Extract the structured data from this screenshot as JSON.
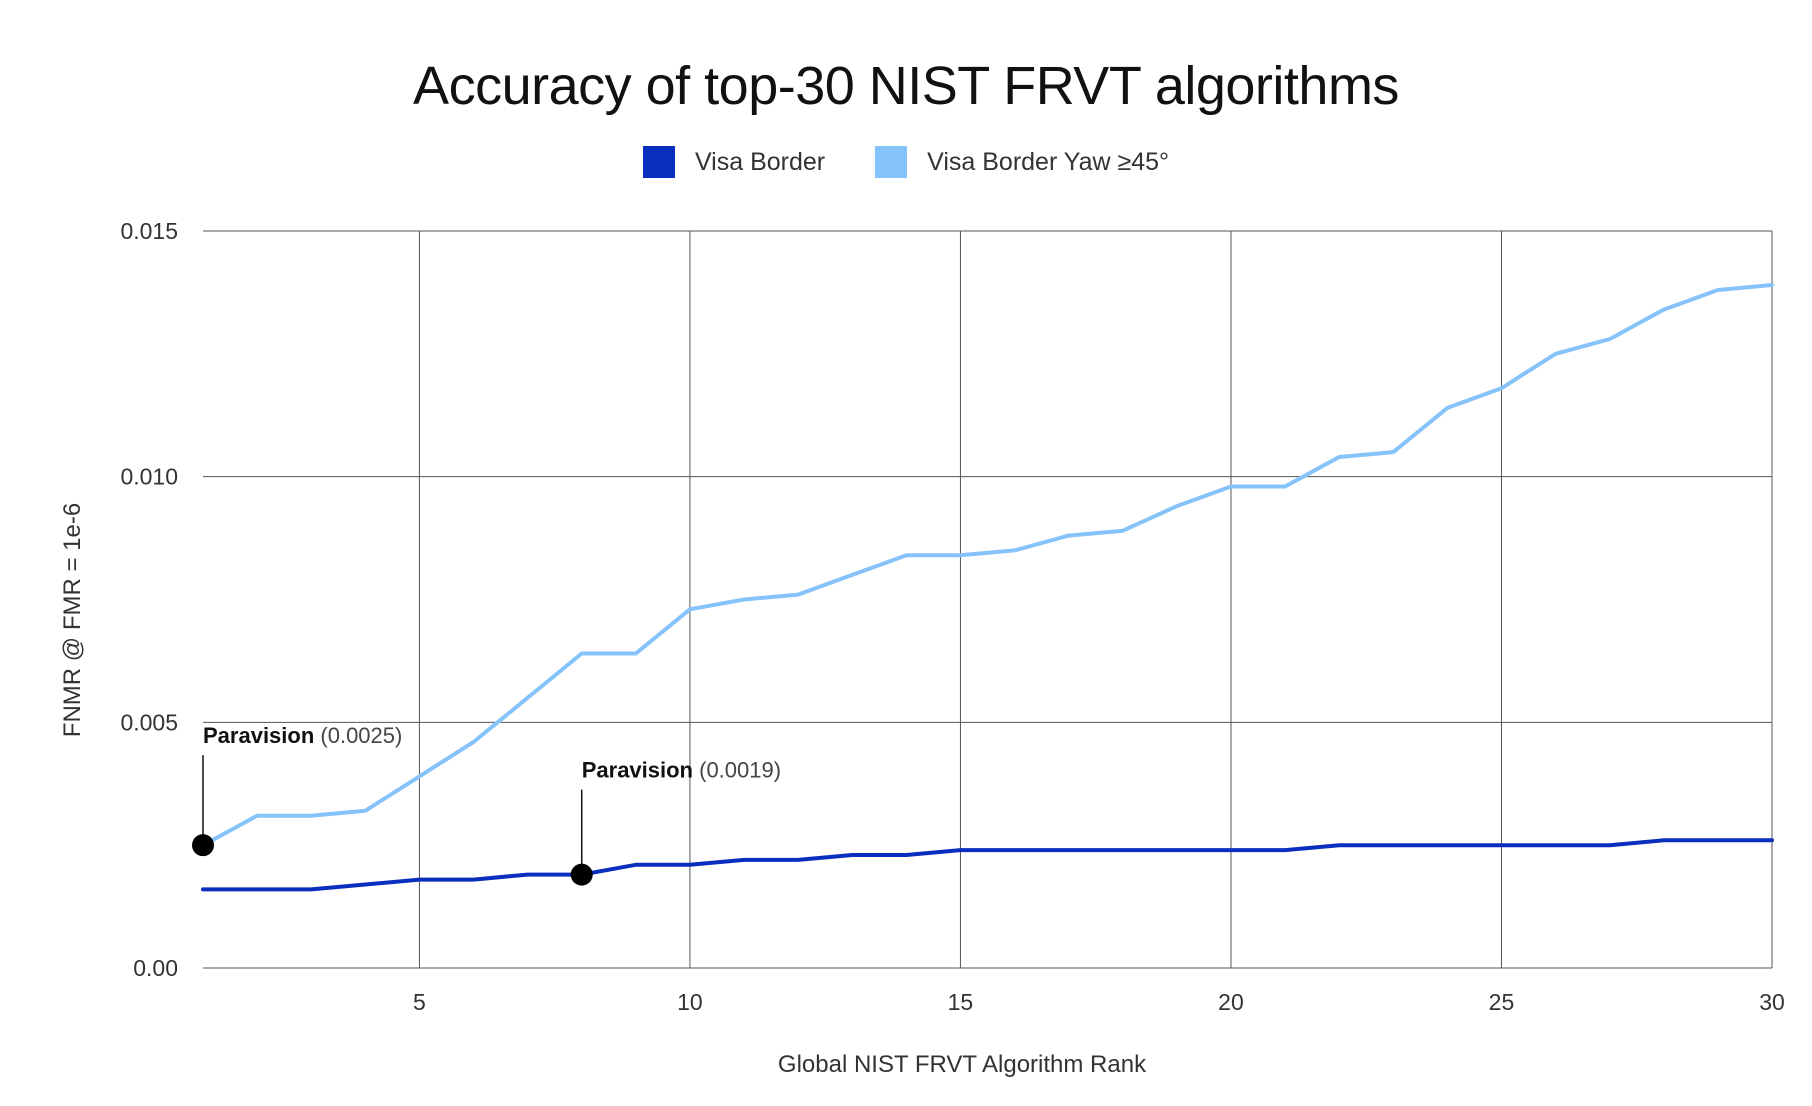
{
  "chart_data": {
    "type": "line",
    "title": "Accuracy of top-30 NIST FRVT algorithms",
    "xlabel": "Global NIST FRVT Algorithm Rank",
    "ylabel": "FNMR @ FMR = 1e-6",
    "xlim": [
      1,
      30
    ],
    "ylim": [
      0,
      0.015
    ],
    "xticks": [
      5,
      10,
      15,
      20,
      25,
      30
    ],
    "xtick_labels": [
      "5",
      "10",
      "15",
      "20",
      "25",
      "30"
    ],
    "yticks": [
      0,
      0.005,
      0.01,
      0.015
    ],
    "ytick_labels": [
      "0.00",
      "0.005",
      "0.010",
      "0.015"
    ],
    "grid": true,
    "legend_position": "top-center",
    "x": [
      1,
      2,
      3,
      4,
      5,
      6,
      7,
      8,
      9,
      10,
      11,
      12,
      13,
      14,
      15,
      16,
      17,
      18,
      19,
      20,
      21,
      22,
      23,
      24,
      25,
      26,
      27,
      28,
      29,
      30
    ],
    "series": [
      {
        "name": "Visa Border",
        "color": "#0a2fbf",
        "values": [
          0.0016,
          0.0016,
          0.0016,
          0.0017,
          0.0018,
          0.0018,
          0.0019,
          0.0019,
          0.0021,
          0.0021,
          0.0022,
          0.0022,
          0.0023,
          0.0023,
          0.0024,
          0.0024,
          0.0024,
          0.0024,
          0.0024,
          0.0024,
          0.0024,
          0.0025,
          0.0025,
          0.0025,
          0.0025,
          0.0025,
          0.0025,
          0.0026,
          0.0026,
          0.0026
        ]
      },
      {
        "name": "Visa Border Yaw ≥45°",
        "color": "#85c3fa",
        "values": [
          0.0025,
          0.0031,
          0.0031,
          0.0032,
          0.0039,
          0.0046,
          0.0055,
          0.0064,
          0.0064,
          0.0073,
          0.0075,
          0.0076,
          0.008,
          0.0084,
          0.0084,
          0.0085,
          0.0088,
          0.0089,
          0.0094,
          0.0098,
          0.0098,
          0.0104,
          0.0105,
          0.0114,
          0.0118,
          0.0125,
          0.0128,
          0.0134,
          0.0138,
          0.0139
        ]
      }
    ],
    "annotations": [
      {
        "x": 1,
        "y": 0.0025,
        "label": "Paravision",
        "value_text": "(0.0025)"
      },
      {
        "x": 8,
        "y": 0.0019,
        "label": "Paravision",
        "value_text": "(0.0019)"
      }
    ]
  }
}
